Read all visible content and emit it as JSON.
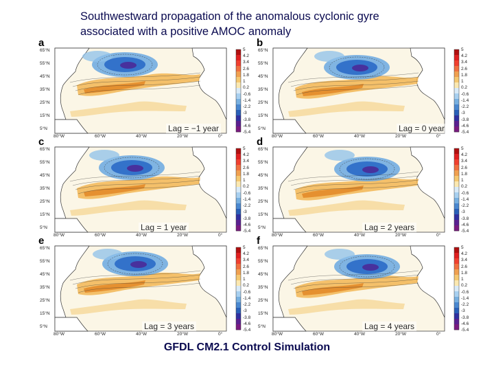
{
  "title": {
    "line1": "Southwestward propagation of the anomalous cyclonic gyre",
    "line2": "associated with a positive AMOC anomaly"
  },
  "panels": [
    {
      "label": "a",
      "lag": "Lag = −1 year"
    },
    {
      "label": "b",
      "lag": "Lag = 0 year"
    },
    {
      "label": "c",
      "lag": "Lag = 1 year"
    },
    {
      "label": "d",
      "lag": "Lag = 2 years"
    },
    {
      "label": "e",
      "lag": "Lag = 3 years"
    },
    {
      "label": "f",
      "lag": "Lag = 4 years"
    }
  ],
  "latitude_ticks": [
    "65°N",
    "55°N",
    "45°N",
    "35°N",
    "25°N",
    "15°N",
    "5°N"
  ],
  "longitude_ticks": [
    "80°W",
    "60°W",
    "40°W",
    "20°W",
    "0°"
  ],
  "colorbar_ticks": [
    "5",
    "4.2",
    "3.4",
    "2.6",
    "1.8",
    "1",
    "0.2",
    "-0.6",
    "-1.4",
    "-2.2",
    "-3",
    "-3.8",
    "-4.6",
    "-5.4"
  ],
  "caption": "GFDL CM2.1 Control Simulation",
  "colors": {
    "title": "#0a0a50",
    "positive": "#f0b040",
    "negative": "#2060c0",
    "land": "#ffffff",
    "ocean_background": "#fbf6e6"
  }
}
